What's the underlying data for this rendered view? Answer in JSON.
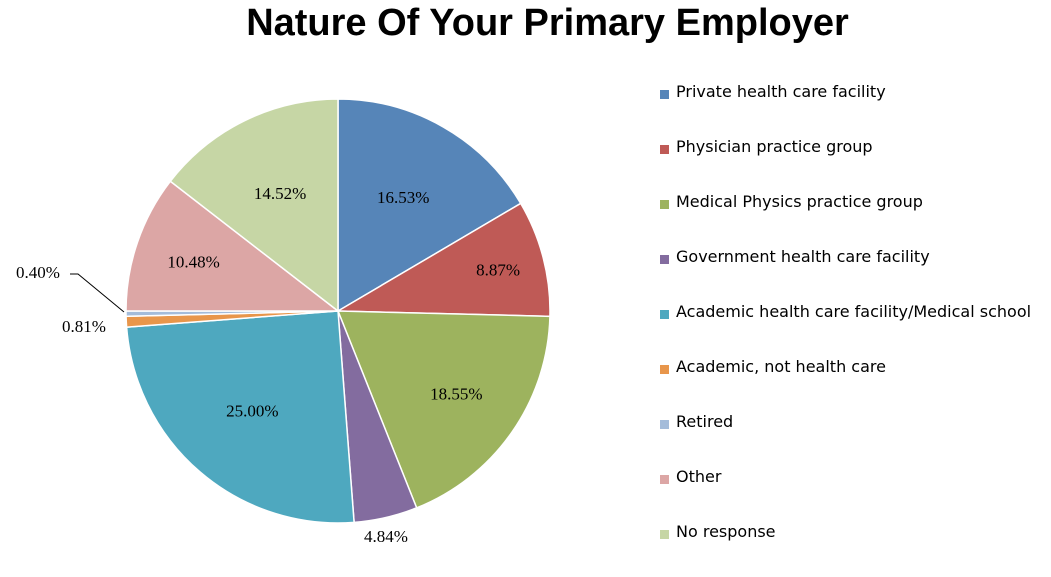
{
  "chart_data": {
    "type": "pie",
    "title": "Nature Of Your Primary Employer",
    "legend_position": "right",
    "slices": [
      {
        "name": "Private health care facility",
        "value": 16.53,
        "label": "16.53%",
        "color": "#5685b8"
      },
      {
        "name": "Physician practice group",
        "value": 8.87,
        "label": "8.87%",
        "color": "#bf5a56"
      },
      {
        "name": "Medical Physics practice group",
        "value": 18.55,
        "label": "18.55%",
        "color": "#9db35e"
      },
      {
        "name": "Government health care facility",
        "value": 4.84,
        "label": "4.84%",
        "color": "#836c9f"
      },
      {
        "name": "Academic health care facility/Medical school",
        "value": 25.0,
        "label": "25.00%",
        "color": "#4ea8bf"
      },
      {
        "name": "Academic, not health care",
        "value": 0.81,
        "label": "0.81%",
        "color": "#e8964b"
      },
      {
        "name": "Retired",
        "value": 0.4,
        "label": "0.40%",
        "color": "#a4bcda"
      },
      {
        "name": "Other",
        "value": 10.48,
        "label": "10.48%",
        "color": "#dca6a5"
      },
      {
        "name": "No response",
        "value": 14.52,
        "label": "14.52%",
        "color": "#c6d6a5"
      }
    ]
  }
}
